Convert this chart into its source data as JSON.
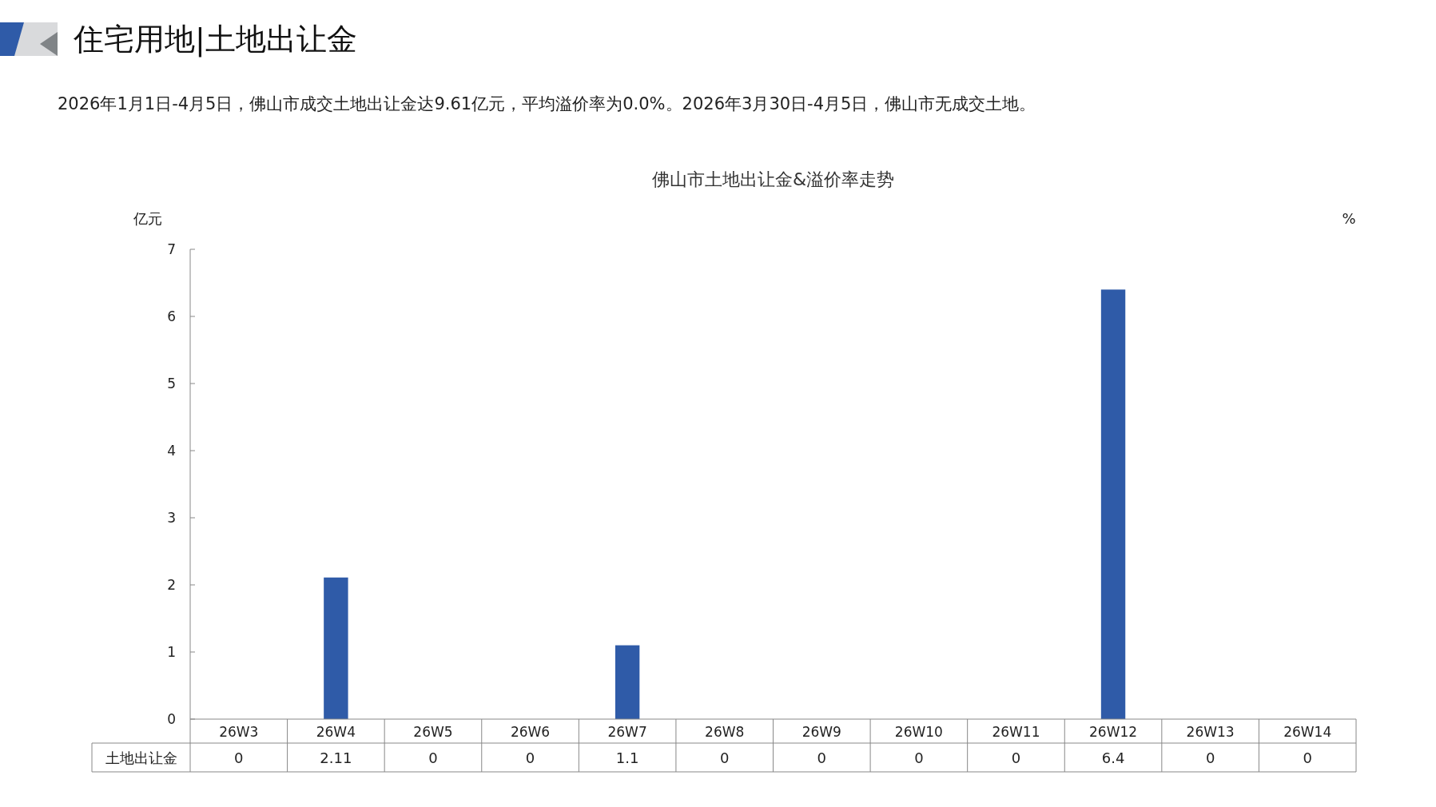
{
  "chart_data": {
    "type": "bar",
    "title": "佛山市土地出让金&溢价率走势",
    "ylabel": "亿元",
    "y2label": "%",
    "annotations": [
      "住宅用地|土地出让金",
      "2026年1月1日-4月5日，佛山市成交土地出让金达9.61亿元，平均溢价率为0.0%。2026年3月30日-4月5日，佛山市无成交土地。"
    ],
    "categories": [
      "26W3",
      "26W4",
      "26W5",
      "26W6",
      "26W7",
      "26W8",
      "26W9",
      "26W10",
      "26W11",
      "26W12",
      "26W13",
      "26W14"
    ],
    "series": [
      {
        "name": "土地出让金",
        "color": "#2f5ba8",
        "values": [
          0,
          2.11,
          0,
          0,
          1.1,
          0,
          0,
          0,
          0,
          6.4,
          0,
          0
        ]
      }
    ],
    "ylim": [
      0,
      7
    ],
    "yticks": [
      0,
      1,
      2,
      3,
      4,
      5,
      6,
      7
    ],
    "data_labels": true
  }
}
